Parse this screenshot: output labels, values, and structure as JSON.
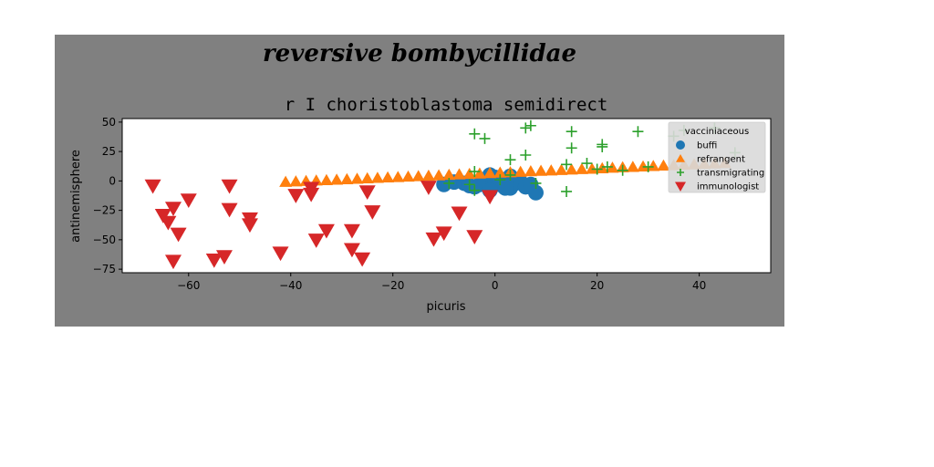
{
  "colors": {
    "figure_background": "#808080",
    "axes_background": "#ffffff",
    "legend_background": "#d9d9d9",
    "buffi": "#1f77b4",
    "refrangent": "#ff7f0e",
    "transmigrating": "#2ca02c",
    "immunologist": "#d62728"
  },
  "chart_data": {
    "type": "scatter",
    "suptitle": "reversive bombycillidae",
    "title": "r I choristoblastoma semidirect",
    "xlabel": "picuris",
    "ylabel": "antinemisphere",
    "xlim": [
      -73,
      54
    ],
    "ylim": [
      -78,
      53
    ],
    "xticks": [
      -60,
      -40,
      -20,
      0,
      20,
      40
    ],
    "xtick_labels": [
      "−60",
      "−40",
      "−20",
      "0",
      "20",
      "40"
    ],
    "yticks": [
      50,
      25,
      0,
      -25,
      -50,
      -75
    ],
    "ytick_labels": [
      "50",
      "25",
      "0",
      "−25",
      "−50",
      "−75"
    ],
    "grid": false,
    "legend": {
      "title": "vacciniaceous",
      "placement": "top-right"
    },
    "series": [
      {
        "name": "buffi",
        "marker": "circle",
        "color_key": "buffi",
        "points": [
          [
            -10,
            -3
          ],
          [
            -8,
            -1
          ],
          [
            -6,
            -2
          ],
          [
            -5,
            -4
          ],
          [
            -4,
            -5
          ],
          [
            -3,
            -3
          ],
          [
            -2,
            0
          ],
          [
            -1,
            5
          ],
          [
            0,
            3
          ],
          [
            0,
            -1
          ],
          [
            1,
            -3
          ],
          [
            2,
            1
          ],
          [
            3,
            -6
          ],
          [
            3,
            4
          ],
          [
            4,
            -2
          ],
          [
            5,
            -1
          ],
          [
            6,
            -5
          ],
          [
            7,
            -3
          ],
          [
            8,
            -10
          ],
          [
            -1,
            -8
          ],
          [
            2,
            -6
          ]
        ]
      },
      {
        "name": "refrangent",
        "marker": "triangle-up",
        "color_key": "refrangent",
        "points": [
          [
            -41,
            -1
          ],
          [
            -39,
            -0.6
          ],
          [
            -37,
            -0.2
          ],
          [
            -35,
            0.2
          ],
          [
            -33,
            0.5
          ],
          [
            -31,
            0.9
          ],
          [
            -29,
            1.3
          ],
          [
            -27,
            1.6
          ],
          [
            -25,
            2
          ],
          [
            -23,
            2.4
          ],
          [
            -21,
            2.8
          ],
          [
            -19,
            3.1
          ],
          [
            -17,
            3.5
          ],
          [
            -15,
            3.9
          ],
          [
            -13,
            4.3
          ],
          [
            -11,
            4.6
          ],
          [
            -9,
            5
          ],
          [
            -7,
            5.4
          ],
          [
            -5,
            5.8
          ],
          [
            -3,
            6.1
          ],
          [
            -1,
            6.5
          ],
          [
            1,
            6.9
          ],
          [
            3,
            7.2
          ],
          [
            5,
            7.6
          ],
          [
            7,
            8
          ],
          [
            9,
            8.4
          ],
          [
            11,
            8.7
          ],
          [
            13,
            9.1
          ],
          [
            15,
            9.5
          ],
          [
            17,
            9.9
          ],
          [
            19,
            10.2
          ],
          [
            21,
            10.6
          ],
          [
            23,
            11
          ],
          [
            25,
            11.4
          ],
          [
            27,
            11.7
          ],
          [
            29,
            12.1
          ],
          [
            31,
            12.5
          ],
          [
            33,
            12.9
          ],
          [
            35,
            13.2
          ],
          [
            37,
            13.6
          ],
          [
            39,
            14
          ],
          [
            41,
            14.4
          ],
          [
            43,
            14.7
          ],
          [
            45,
            15.1
          ]
        ]
      },
      {
        "name": "transmigrating",
        "marker": "plus",
        "color_key": "transmigrating",
        "points": [
          [
            -4,
            40
          ],
          [
            -2,
            36
          ],
          [
            6,
            45
          ],
          [
            7,
            47
          ],
          [
            15,
            42
          ],
          [
            15,
            28
          ],
          [
            21,
            31
          ],
          [
            21,
            29
          ],
          [
            28,
            42
          ],
          [
            35,
            38
          ],
          [
            37,
            43
          ],
          [
            3,
            18
          ],
          [
            6,
            22
          ],
          [
            -4,
            8
          ],
          [
            -9,
            -2
          ],
          [
            -5,
            -3
          ],
          [
            -4,
            -8
          ],
          [
            1,
            1
          ],
          [
            3,
            5
          ],
          [
            8,
            -2
          ],
          [
            14,
            -9
          ],
          [
            14,
            14
          ],
          [
            18,
            15
          ],
          [
            20,
            10
          ],
          [
            22,
            12
          ],
          [
            25,
            9
          ],
          [
            30,
            12
          ],
          [
            47,
            24
          ],
          [
            43,
            45
          ]
        ]
      },
      {
        "name": "immunologist",
        "marker": "triangle-down",
        "color_key": "immunologist",
        "points": [
          [
            -67,
            -4
          ],
          [
            -65,
            -29
          ],
          [
            -64,
            -35
          ],
          [
            -63,
            -23
          ],
          [
            -62,
            -45
          ],
          [
            -63,
            -68
          ],
          [
            -60,
            -16
          ],
          [
            -55,
            -67
          ],
          [
            -53,
            -64
          ],
          [
            -52,
            -4
          ],
          [
            -52,
            -24
          ],
          [
            -48,
            -32
          ],
          [
            -48,
            -37
          ],
          [
            -42,
            -61
          ],
          [
            -39,
            -12
          ],
          [
            -36,
            -6
          ],
          [
            -36,
            -11
          ],
          [
            -35,
            -50
          ],
          [
            -33,
            -42
          ],
          [
            -28,
            -42
          ],
          [
            -28,
            -58
          ],
          [
            -26,
            -66
          ],
          [
            -25,
            -9
          ],
          [
            -24,
            -26
          ],
          [
            -13,
            -5
          ],
          [
            -12,
            -49
          ],
          [
            -10,
            -44
          ],
          [
            -7,
            -27
          ],
          [
            -4,
            -47
          ],
          [
            -1,
            -13
          ]
        ]
      }
    ]
  }
}
